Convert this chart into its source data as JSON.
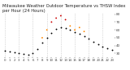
{
  "title": "Milwaukee Weather Outdoor Temperature vs THSW Index per Hour (24 Hours)",
  "background_color": "#ffffff",
  "grid_color": "#bbbbbb",
  "hours": [
    0,
    1,
    2,
    3,
    4,
    5,
    6,
    7,
    8,
    9,
    10,
    11,
    12,
    13,
    14,
    15,
    16,
    17,
    18,
    19,
    20,
    21,
    22,
    23
  ],
  "temp_values": [
    34,
    33,
    32,
    30,
    29,
    28,
    30,
    36,
    44,
    50,
    56,
    61,
    63,
    62,
    60,
    57,
    55,
    52,
    49,
    45,
    42,
    39,
    37,
    35
  ],
  "thsw_values": [
    null,
    null,
    null,
    null,
    null,
    null,
    null,
    null,
    50,
    60,
    70,
    75,
    78,
    73,
    65,
    60,
    63,
    58,
    null,
    null,
    null,
    null,
    null,
    null
  ],
  "temp_color": "#000000",
  "thsw_color": "#ff8800",
  "thsw_color2": "#cc0000",
  "marker_size": 1.8,
  "ylim": [
    25,
    82
  ],
  "yticks": [
    30,
    40,
    50,
    60,
    70,
    80
  ],
  "ytick_labels": [
    "30",
    "40",
    "50",
    "60",
    "70",
    "80"
  ],
  "xtick_labels": [
    "0",
    "1",
    "2",
    "3",
    "4",
    "5",
    "6",
    "7",
    "8",
    "9",
    "10",
    "11",
    "12",
    "13",
    "14",
    "15",
    "16",
    "17",
    "18",
    "19",
    "20",
    "21",
    "22",
    "23"
  ],
  "vgrid_positions": [
    0,
    3,
    6,
    9,
    12,
    15,
    18,
    21
  ],
  "title_fontsize": 3.8,
  "tick_fontsize": 2.8,
  "ytick_fontsize": 3.0
}
